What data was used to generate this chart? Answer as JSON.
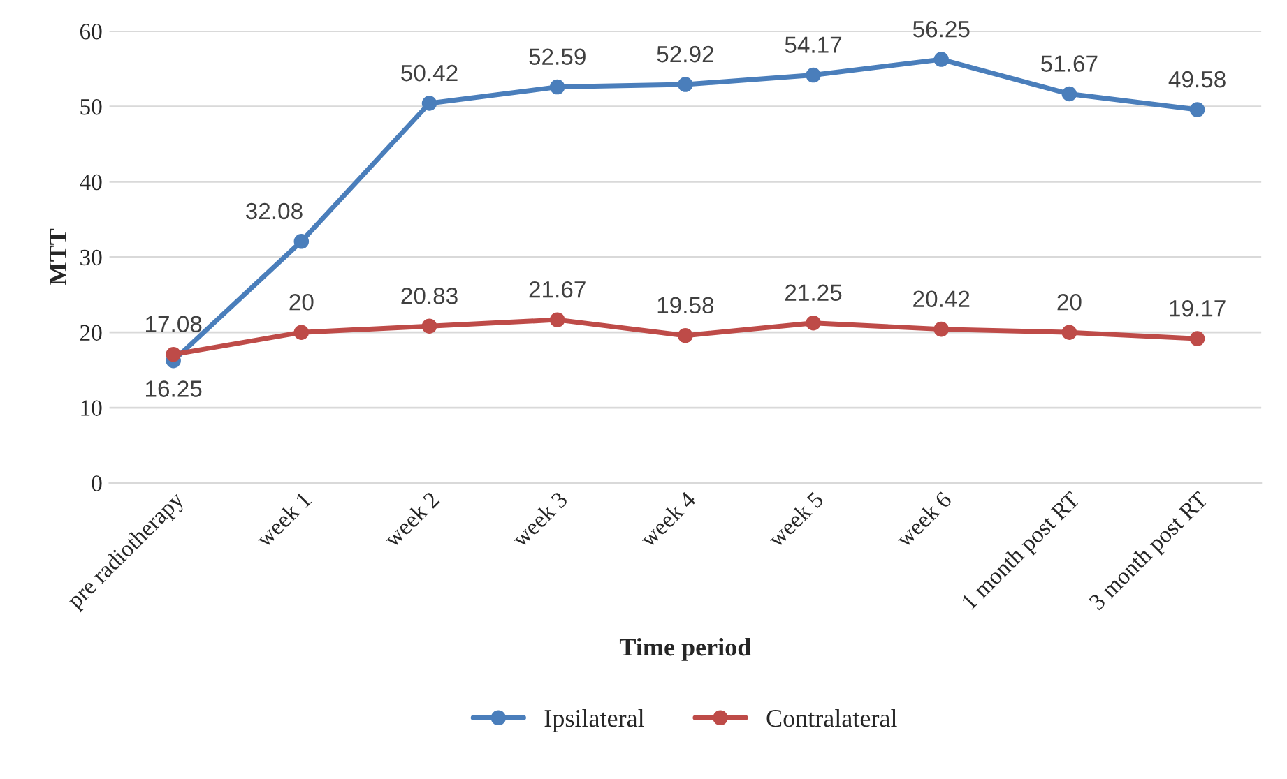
{
  "chart_data": {
    "type": "line",
    "xlabel": "Time period",
    "ylabel": "MTT",
    "categories": [
      "pre radiotherapy",
      "week 1",
      "week 2",
      "week 3",
      "week 4",
      "week 5",
      "week 6",
      "1 month post RT",
      "3 month post RT"
    ],
    "series": [
      {
        "name": "Ipsilateral",
        "color": "#4a7ebb",
        "values": [
          16.25,
          32.08,
          50.42,
          52.59,
          52.92,
          54.17,
          56.25,
          51.67,
          49.58
        ]
      },
      {
        "name": "Contralateral",
        "color": "#be4b48",
        "values": [
          17.08,
          20,
          20.83,
          21.67,
          19.58,
          21.25,
          20.42,
          20,
          19.17
        ]
      }
    ],
    "ylim": [
      0,
      60
    ],
    "yticks": [
      0,
      10,
      20,
      30,
      40,
      50,
      60
    ],
    "grid": "y",
    "legend": "bottom",
    "marker": "circle",
    "line_style": "solid",
    "data_labels": true
  }
}
